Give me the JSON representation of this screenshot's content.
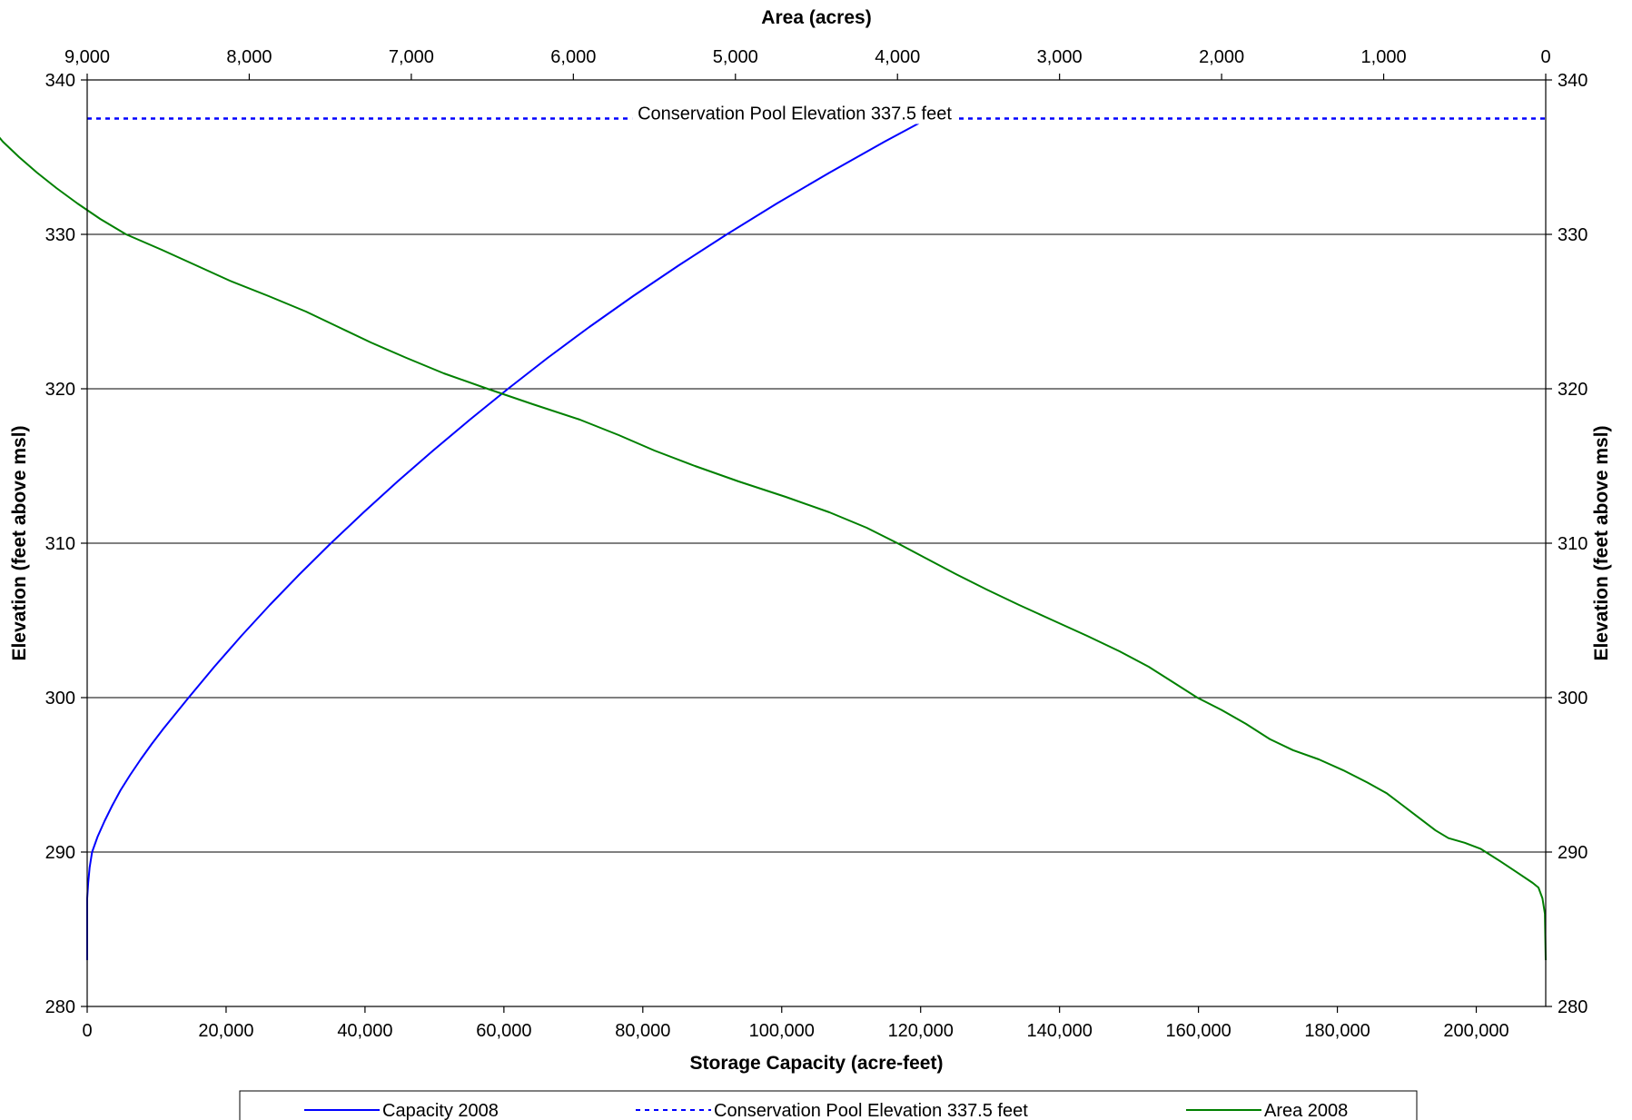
{
  "chart_data": {
    "type": "line",
    "title": "",
    "xlabel": "Storage Capacity (acre-feet)",
    "x2label": "Area (acres)",
    "ylabel": "Elevation (feet above msl)",
    "y2label": "Elevation (feet above msl)",
    "xlim": [
      0,
      210000
    ],
    "x2lim": [
      9000,
      0
    ],
    "x2_reversed": true,
    "ylim": [
      280,
      340
    ],
    "x_ticks": [
      0,
      20000,
      40000,
      60000,
      80000,
      100000,
      120000,
      140000,
      160000,
      180000,
      200000
    ],
    "x_tick_labels": [
      "0",
      "20,000",
      "40,000",
      "60,000",
      "80,000",
      "100,000",
      "120,000",
      "140,000",
      "160,000",
      "180,000",
      "200,000"
    ],
    "x2_ticks": [
      9000,
      8000,
      7000,
      6000,
      5000,
      4000,
      3000,
      2000,
      1000,
      0
    ],
    "x2_tick_labels": [
      "9,000",
      "8,000",
      "7,000",
      "6,000",
      "5,000",
      "4,000",
      "3,000",
      "2,000",
      "1,000",
      "0"
    ],
    "y_ticks": [
      280,
      290,
      300,
      310,
      320,
      330,
      340
    ],
    "y_tick_labels": [
      "280",
      "290",
      "300",
      "310",
      "320",
      "330",
      "340"
    ],
    "grid": "horizontal major gridlines",
    "legend_position": "bottom",
    "annotation": "Conservation Pool Elevation 337.5 feet",
    "series": [
      {
        "name": "Capacity 2008",
        "axis": "capacity",
        "color": "#0000ff",
        "style": "solid",
        "points": [
          [
            0,
            283
          ],
          [
            0,
            287
          ],
          [
            150,
            288
          ],
          [
            350,
            289
          ],
          [
            700,
            290
          ],
          [
            1500,
            291
          ],
          [
            2500,
            292
          ],
          [
            3600,
            293
          ],
          [
            4800,
            294
          ],
          [
            6200,
            295
          ],
          [
            7700,
            296
          ],
          [
            9300,
            297
          ],
          [
            11000,
            298
          ],
          [
            12800,
            299
          ],
          [
            14600,
            300
          ],
          [
            18300,
            302
          ],
          [
            22200,
            304
          ],
          [
            26300,
            306
          ],
          [
            30600,
            308
          ],
          [
            35100,
            310
          ],
          [
            39800,
            312
          ],
          [
            44700,
            314
          ],
          [
            49800,
            316
          ],
          [
            55100,
            318
          ],
          [
            60600,
            320
          ],
          [
            66300,
            322
          ],
          [
            72300,
            324
          ],
          [
            78600,
            326
          ],
          [
            85200,
            328
          ],
          [
            92100,
            330
          ],
          [
            99300,
            332
          ],
          [
            106900,
            334
          ],
          [
            114800,
            336
          ],
          [
            121000,
            337.5
          ]
        ],
        "points_x_scale_note": "capacity"
      },
      {
        "name": "Conservation Pool Elevation 337.5 feet",
        "axis": "capacity",
        "color": "#0000ff",
        "style": "dashed",
        "points": [
          [
            0,
            337.5
          ],
          [
            210000,
            337.5
          ]
        ]
      },
      {
        "name": "Area 2008",
        "axis": "area",
        "color": "#008000",
        "style": "solid",
        "points": [
          [
            0,
            283
          ],
          [
            5,
            286
          ],
          [
            20,
            287
          ],
          [
            45,
            287.7
          ],
          [
            80,
            288
          ],
          [
            180,
            288.7
          ],
          [
            280,
            289.4
          ],
          [
            400,
            290.2
          ],
          [
            500,
            290.6
          ],
          [
            600,
            290.9
          ],
          [
            680,
            291.4
          ],
          [
            780,
            292.2
          ],
          [
            880,
            293
          ],
          [
            980,
            293.8
          ],
          [
            1100,
            294.5
          ],
          [
            1250,
            295.3
          ],
          [
            1400,
            296
          ],
          [
            1560,
            296.6
          ],
          [
            1700,
            297.3
          ],
          [
            1850,
            298.3
          ],
          [
            2000,
            299.2
          ],
          [
            2150,
            300
          ],
          [
            2300,
            301
          ],
          [
            2450,
            302
          ],
          [
            2630,
            303
          ],
          [
            2830,
            304
          ],
          [
            3040,
            305
          ],
          [
            3250,
            306
          ],
          [
            3450,
            307
          ],
          [
            3640,
            308
          ],
          [
            3820,
            309
          ],
          [
            4000,
            310
          ],
          [
            4190,
            311
          ],
          [
            4420,
            312
          ],
          [
            4690,
            313
          ],
          [
            4980,
            314
          ],
          [
            5250,
            315
          ],
          [
            5500,
            316
          ],
          [
            5720,
            317
          ],
          [
            5960,
            318
          ],
          [
            6250,
            319
          ],
          [
            6530,
            320
          ],
          [
            6800,
            321
          ],
          [
            7030,
            322
          ],
          [
            7250,
            323
          ],
          [
            7450,
            324
          ],
          [
            7650,
            325
          ],
          [
            7880,
            326
          ],
          [
            8120,
            327
          ],
          [
            8330,
            328
          ],
          [
            8540,
            329
          ],
          [
            8760,
            330
          ],
          [
            8920,
            331
          ],
          [
            9060,
            332
          ],
          [
            9190,
            333
          ],
          [
            9310,
            334
          ],
          [
            9420,
            335
          ],
          [
            9520,
            336
          ],
          [
            9600,
            337
          ],
          [
            9630,
            337.5
          ]
        ]
      }
    ],
    "legend": [
      {
        "label": "Capacity 2008",
        "color": "#0000ff",
        "style": "solid"
      },
      {
        "label": "Conservation Pool Elevation 337.5 feet",
        "color": "#0000ff",
        "style": "dashed"
      },
      {
        "label": "Area 2008",
        "color": "#008000",
        "style": "solid"
      }
    ]
  }
}
